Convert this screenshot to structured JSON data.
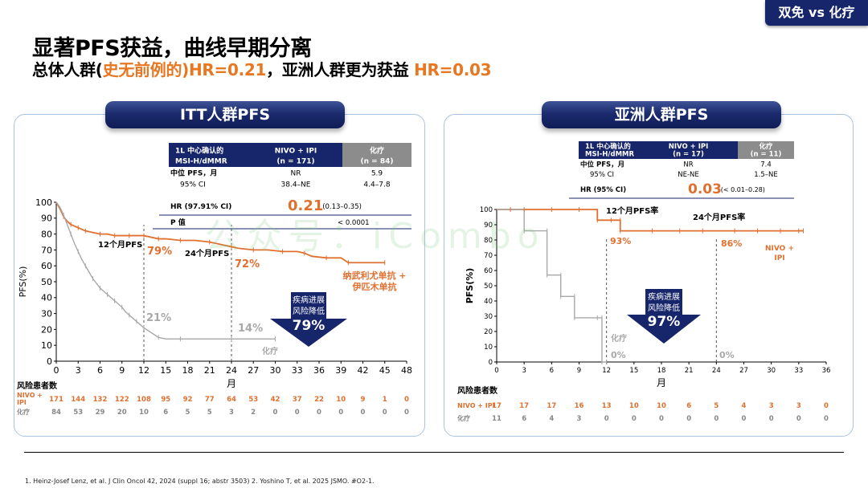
{
  "tag": "双免 vs 化疗",
  "title": "显著PFS获益，曲线早期分离",
  "subtitle": {
    "prefix": "总体人群(",
    "highlight1": "史无前例的",
    "mid": ")HR=0.21",
    "comma": "，亚洲人群更为获益 ",
    "highlight2": "HR=0.03"
  },
  "watermark": "公众号：iCombo",
  "colors": {
    "nivo_ipi": "#e07030",
    "chemo": "#a8a8a8",
    "navy": "#17266b",
    "dashed": "#555555"
  },
  "chart_data": [
    {
      "type": "line",
      "panel_title": "ITT人群PFS",
      "xlabel": "月",
      "ylabel": "PFS(%)",
      "xlim": [
        0,
        48
      ],
      "ylim": [
        0,
        100
      ],
      "xticks": [
        0,
        3,
        6,
        9,
        12,
        15,
        18,
        21,
        24,
        27,
        30,
        33,
        36,
        39,
        42,
        45,
        48
      ],
      "yticks": [
        0,
        10,
        20,
        30,
        40,
        50,
        60,
        70,
        80,
        90,
        100
      ],
      "series": [
        {
          "name": "纳武利尤单抗 + 伊匹木单抗",
          "x": [
            0,
            0.5,
            1,
            1.5,
            2,
            2.5,
            3,
            3.5,
            4,
            5,
            6,
            7,
            8,
            9,
            10,
            11,
            12,
            13,
            14,
            15,
            17,
            19,
            21,
            23,
            24,
            25,
            27,
            29,
            31,
            33,
            34,
            35,
            37,
            39,
            40,
            42,
            45
          ],
          "y": [
            100,
            96,
            91,
            88,
            86,
            85,
            84,
            83,
            82,
            81,
            80,
            80,
            79,
            79,
            79,
            79,
            79,
            78,
            77,
            77,
            76,
            76,
            75,
            73,
            72,
            71,
            70,
            70,
            69,
            69,
            68,
            66,
            65,
            65,
            62,
            62,
            62
          ]
        },
        {
          "name": "化疗",
          "x": [
            0,
            0.5,
            1,
            1.5,
            2,
            2.5,
            3,
            3.5,
            4,
            4.5,
            5,
            5.5,
            6,
            6.5,
            7,
            7.5,
            8,
            8.5,
            9,
            9.5,
            10,
            10.5,
            11,
            11.5,
            12,
            13,
            14,
            15,
            17,
            20,
            24,
            27,
            30
          ],
          "y": [
            100,
            97,
            92,
            86,
            80,
            74,
            69,
            64,
            60,
            56,
            52,
            49,
            46,
            44,
            42,
            40,
            38,
            36,
            34,
            31,
            29,
            27,
            25,
            23,
            21,
            18,
            15,
            14,
            14,
            14,
            14,
            14,
            14
          ]
        }
      ],
      "risk_table": {
        "title": "风险患者数",
        "rows": [
          {
            "label": "NIVO + IPI",
            "values": [
              171,
              144,
              132,
              122,
              108,
              95,
              92,
              77,
              64,
              53,
              42,
              37,
              22,
              10,
              9,
              1,
              0
            ]
          },
          {
            "label": "化疗",
            "values": [
              84,
              53,
              29,
              20,
              10,
              6,
              5,
              5,
              3,
              2,
              0,
              0,
              0,
              0,
              0,
              0,
              0
            ]
          }
        ]
      },
      "stats_table": {
        "header": [
          "1L 中心确认的 MSI-H/dMMR",
          "NIVO + IPI (n = 171)",
          "化疗 (n = 84)"
        ],
        "rows": [
          [
            "中位 PFS，月",
            "NR",
            "5.9"
          ],
          [
            "95% CI",
            "38.4–NE",
            "4.4–7.8"
          ]
        ],
        "hr_label": "HR (97.91% CI)",
        "hr_value": "0.21",
        "hr_ci": "(0.13–0.35)",
        "p_label": "P 值",
        "p_value": "< 0.0001"
      },
      "annotations": {
        "m12": "12个月PFS",
        "m24": "24个月PFS",
        "nivo12": "79%",
        "nivo24": "72%",
        "chemo12": "21%",
        "chemo24": "14%",
        "chemo_label": "化疗",
        "nivo_label_line1": "纳武利尤单抗 +",
        "nivo_label_line2": "伊匹木单抗",
        "arrow_line1": "疾病进展",
        "arrow_line2": "风险降低",
        "arrow_value": "79%"
      }
    },
    {
      "type": "line",
      "panel_title": "亚洲人群PFS",
      "xlabel": "月",
      "ylabel": "PFS(%)",
      "xlim": [
        0,
        36
      ],
      "ylim": [
        0,
        100
      ],
      "xticks": [
        0,
        3,
        6,
        9,
        12,
        15,
        18,
        21,
        24,
        27,
        30,
        33,
        36
      ],
      "yticks": [
        0,
        10,
        20,
        30,
        40,
        50,
        60,
        70,
        80,
        90,
        100
      ],
      "series": [
        {
          "name": "NIVO + IPI",
          "x": [
            0,
            11,
            11,
            13.5,
            13.5,
            33.5
          ],
          "y": [
            100,
            100,
            93,
            93,
            86,
            86
          ]
        },
        {
          "name": "化疗",
          "x": [
            0,
            3,
            3,
            5.5,
            5.5,
            7,
            7,
            8.5,
            8.5,
            11.5,
            11.5,
            12
          ],
          "y": [
            100,
            100,
            86,
            86,
            57,
            57,
            43,
            43,
            29,
            29,
            0,
            0
          ]
        }
      ],
      "risk_table": {
        "title": "风险患者数",
        "rows": [
          {
            "label": "NIVO + IPI",
            "values": [
              17,
              17,
              17,
              16,
              13,
              10,
              10,
              6,
              5,
              4,
              3,
              3,
              0
            ]
          },
          {
            "label": "化疗",
            "values": [
              11,
              6,
              4,
              3,
              0,
              0,
              0,
              0,
              0,
              0,
              0,
              0,
              0
            ]
          }
        ]
      },
      "stats_table": {
        "header": [
          "1L 中心确认的 MSI-H/dMMR",
          "NIVO + IPI (n = 17)",
          "化疗 (n = 11)"
        ],
        "rows": [
          [
            "中位 PFS，月",
            "NR",
            "7.4"
          ],
          [
            "95% CI",
            "NE-NE",
            "1.5–NE"
          ]
        ],
        "hr_label": "HR (95% CI)",
        "hr_value": "0.03",
        "hr_ci": "(< 0.01–0.28)"
      },
      "annotations": {
        "m12": "12个月PFS率",
        "m24": "24个月PFS率",
        "nivo12": "93%",
        "nivo24": "86%",
        "chemo12": "0%",
        "chemo24": "0%",
        "chemo_label": "化疗",
        "nivo_label_line1": "NIVO +",
        "nivo_label_line2": "IPI",
        "arrow_line1": "疾病进展",
        "arrow_line2": "风险降低",
        "arrow_value": "97%"
      }
    }
  ],
  "footnote": "1. Heinz-Josef Lenz, et al. J Clin Oncol 42, 2024 (suppl 16; abstr 3503)  2. Yoshino T, et al. 2025 JSMO. #O2-1."
}
